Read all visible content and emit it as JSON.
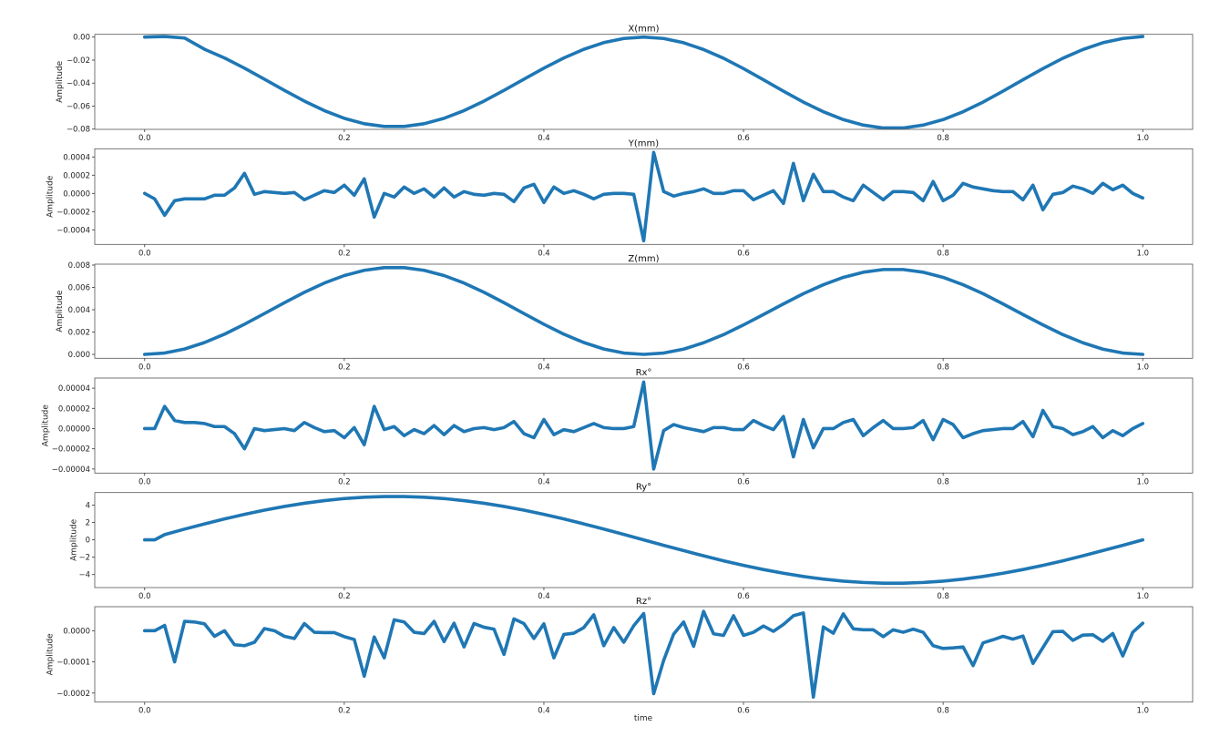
{
  "line_color": "#1f77b4",
  "xlabel": "time",
  "chart_data": [
    {
      "type": "line",
      "title": "X(mm)",
      "ylabel": "Amplitude",
      "xlim": [
        -0.05,
        1.05
      ],
      "ylim": [
        -0.0802,
        0.0024
      ],
      "xticks": [
        0,
        0.2,
        0.4,
        0.6,
        0.8,
        1.0
      ],
      "xtick_labels": [
        "0.0",
        "0.2",
        "0.4",
        "0.6",
        "0.8",
        "1.0"
      ],
      "yticks": [
        0,
        -0.02,
        -0.04,
        -0.06,
        -0.08
      ],
      "ytick_labels": [
        "0.00",
        "−0.02",
        "−0.04",
        "−0.06",
        "−0.08"
      ],
      "x": [
        0,
        0.02,
        0.04,
        0.06,
        0.08,
        0.1,
        0.12,
        0.14,
        0.16,
        0.18,
        0.2,
        0.22,
        0.24,
        0.26,
        0.28,
        0.3,
        0.32,
        0.34,
        0.36,
        0.38,
        0.4,
        0.42,
        0.44,
        0.46,
        0.48,
        0.5,
        0.52,
        0.54,
        0.56,
        0.58,
        0.6,
        0.62,
        0.64,
        0.66,
        0.68,
        0.7,
        0.72,
        0.74,
        0.76,
        0.78,
        0.8,
        0.82,
        0.84,
        0.86,
        0.88,
        0.9,
        0.92,
        0.94,
        0.96,
        0.98,
        1.0
      ],
      "y": [
        0.0,
        0.0005,
        -0.0008,
        -0.0106,
        -0.0181,
        -0.027,
        -0.0366,
        -0.0463,
        -0.0556,
        -0.0639,
        -0.0706,
        -0.0753,
        -0.0777,
        -0.0777,
        -0.0753,
        -0.0706,
        -0.0639,
        -0.0556,
        -0.0463,
        -0.0366,
        -0.027,
        -0.0181,
        -0.0106,
        -0.0048,
        -0.0012,
        0.0,
        -0.0012,
        -0.0049,
        -0.0108,
        -0.0184,
        -0.0274,
        -0.0371,
        -0.047,
        -0.0565,
        -0.0649,
        -0.0717,
        -0.0765,
        -0.079,
        -0.079,
        -0.0765,
        -0.0717,
        -0.0649,
        -0.0565,
        -0.047,
        -0.0371,
        -0.0274,
        -0.0184,
        -0.0108,
        -0.0049,
        -0.0012,
        0.0005
      ]
    },
    {
      "type": "line",
      "title": "Y(mm)",
      "ylabel": "Amplitude",
      "xlim": [
        -0.05,
        1.05
      ],
      "ylim": [
        -0.00056,
        0.00049
      ],
      "xticks": [
        0,
        0.2,
        0.4,
        0.6,
        0.8,
        1.0
      ],
      "xtick_labels": [
        "0.0",
        "0.2",
        "0.4",
        "0.6",
        "0.8",
        "1.0"
      ],
      "yticks": [
        0.0004,
        0.0002,
        0,
        -0.0002,
        -0.0004
      ],
      "ytick_labels": [
        "0.0004",
        "0.0002",
        "0.0000",
        "−0.0002",
        "−0.0004"
      ],
      "x": [
        0,
        0.01,
        0.02,
        0.03,
        0.04,
        0.05,
        0.06,
        0.07,
        0.08,
        0.09,
        0.1,
        0.11,
        0.12,
        0.13,
        0.14,
        0.15,
        0.16,
        0.17,
        0.18,
        0.19,
        0.2,
        0.21,
        0.22,
        0.23,
        0.24,
        0.25,
        0.26,
        0.27,
        0.28,
        0.29,
        0.3,
        0.31,
        0.32,
        0.33,
        0.34,
        0.35,
        0.36,
        0.37,
        0.38,
        0.39,
        0.4,
        0.41,
        0.42,
        0.43,
        0.44,
        0.45,
        0.46,
        0.47,
        0.48,
        0.49,
        0.5,
        0.51,
        0.52,
        0.53,
        0.54,
        0.55,
        0.56,
        0.57,
        0.58,
        0.59,
        0.6,
        0.61,
        0.62,
        0.63,
        0.64,
        0.65,
        0.66,
        0.67,
        0.68,
        0.69,
        0.7,
        0.71,
        0.72,
        0.73,
        0.74,
        0.75,
        0.76,
        0.77,
        0.78,
        0.79,
        0.8,
        0.81,
        0.82,
        0.83,
        0.84,
        0.85,
        0.86,
        0.87,
        0.88,
        0.89,
        0.9,
        0.91,
        0.92,
        0.93,
        0.94,
        0.95,
        0.96,
        0.97,
        0.98,
        0.99,
        1.0
      ],
      "y": [
        0,
        -6e-05,
        -0.00024,
        -8e-05,
        -6e-05,
        -6e-05,
        -6e-05,
        -2e-05,
        -2e-05,
        6e-05,
        0.00022,
        -1e-05,
        2e-05,
        1e-05,
        0,
        1e-05,
        -7e-05,
        -2e-05,
        3e-05,
        1e-05,
        9e-05,
        -2e-05,
        0.00016,
        -0.00026,
        0,
        -4e-05,
        7e-05,
        0,
        5e-05,
        -4e-05,
        6e-05,
        -4e-05,
        2e-05,
        -1e-05,
        -2e-05,
        0,
        -1e-05,
        -9e-05,
        6e-05,
        0.0001,
        -0.0001,
        7e-05,
        0,
        3e-05,
        -1e-05,
        -6e-05,
        -1e-05,
        0,
        0,
        -1e-05,
        -0.00052,
        0.00045,
        2e-05,
        -3e-05,
        0,
        2e-05,
        5e-05,
        0,
        0,
        3e-05,
        3e-05,
        -7e-05,
        -2e-05,
        3e-05,
        -0.00011,
        0.00033,
        -8e-05,
        0.00021,
        2e-05,
        2e-05,
        -4e-05,
        -8e-05,
        9e-05,
        1e-05,
        -7e-05,
        2e-05,
        2e-05,
        1e-05,
        -8e-05,
        0.00013,
        -8e-05,
        -2e-05,
        0.00011,
        7e-05,
        5e-05,
        3e-05,
        2e-05,
        2e-05,
        -7e-05,
        9e-05,
        -0.00018,
        -1e-05,
        1e-05,
        8e-05,
        5e-05,
        0,
        0.00011,
        4e-05,
        9e-05,
        0,
        -5e-05
      ]
    },
    {
      "type": "line",
      "title": "Z(mm)",
      "ylabel": "Amplitude",
      "xlim": [
        -0.05,
        1.05
      ],
      "ylim": [
        -0.00035,
        0.00808
      ],
      "xticks": [
        0,
        0.2,
        0.4,
        0.6,
        0.8,
        1.0
      ],
      "xtick_labels": [
        "0.0",
        "0.2",
        "0.4",
        "0.6",
        "0.8",
        "1.0"
      ],
      "yticks": [
        0.008,
        0.006,
        0.004,
        0.002,
        0
      ],
      "ytick_labels": [
        "0.008",
        "0.006",
        "0.004",
        "0.002",
        "0.000"
      ],
      "x": [
        0,
        0.02,
        0.04,
        0.06,
        0.08,
        0.1,
        0.12,
        0.14,
        0.16,
        0.18,
        0.2,
        0.22,
        0.24,
        0.26,
        0.28,
        0.3,
        0.32,
        0.34,
        0.36,
        0.38,
        0.4,
        0.42,
        0.44,
        0.46,
        0.48,
        0.5,
        0.52,
        0.54,
        0.56,
        0.58,
        0.6,
        0.62,
        0.64,
        0.66,
        0.68,
        0.7,
        0.72,
        0.74,
        0.76,
        0.78,
        0.8,
        0.82,
        0.84,
        0.86,
        0.88,
        0.9,
        0.92,
        0.94,
        0.96,
        0.98,
        1.0
      ],
      "y": [
        0,
        0.00012,
        0.00048,
        0.00106,
        0.00181,
        0.0027,
        0.00366,
        0.00463,
        0.00556,
        0.00639,
        0.00706,
        0.00753,
        0.00777,
        0.00777,
        0.00753,
        0.00706,
        0.00639,
        0.00556,
        0.00463,
        0.00366,
        0.0027,
        0.00181,
        0.00106,
        0.00048,
        0.00012,
        0,
        0.00012,
        0.00047,
        0.00104,
        0.00177,
        0.00264,
        0.00357,
        0.00452,
        0.00544,
        0.00624,
        0.0069,
        0.00736,
        0.0076,
        0.0076,
        0.00736,
        0.0069,
        0.00624,
        0.00544,
        0.00452,
        0.00357,
        0.00264,
        0.00177,
        0.00104,
        0.00047,
        0.00012,
        0
      ]
    },
    {
      "type": "line",
      "title": "Rx°",
      "ylabel": "Amplitude",
      "xlim": [
        -0.05,
        1.05
      ],
      "ylim": [
        -4.4e-05,
        5e-05
      ],
      "xticks": [
        0,
        0.2,
        0.4,
        0.6,
        0.8,
        1.0
      ],
      "xtick_labels": [
        "0.0",
        "0.2",
        "0.4",
        "0.6",
        "0.8",
        "1.0"
      ],
      "yticks": [
        4e-05,
        2e-05,
        0,
        -2e-05,
        -4e-05
      ],
      "ytick_labels": [
        "0.00004",
        "0.00002",
        "0.00000",
        "−0.00002",
        "−0.00004"
      ],
      "x": [
        0,
        0.01,
        0.02,
        0.03,
        0.04,
        0.05,
        0.06,
        0.07,
        0.08,
        0.09,
        0.1,
        0.11,
        0.12,
        0.13,
        0.14,
        0.15,
        0.16,
        0.17,
        0.18,
        0.19,
        0.2,
        0.21,
        0.22,
        0.23,
        0.24,
        0.25,
        0.26,
        0.27,
        0.28,
        0.29,
        0.3,
        0.31,
        0.32,
        0.33,
        0.34,
        0.35,
        0.36,
        0.37,
        0.38,
        0.39,
        0.4,
        0.41,
        0.42,
        0.43,
        0.44,
        0.45,
        0.46,
        0.47,
        0.48,
        0.49,
        0.5,
        0.51,
        0.52,
        0.53,
        0.54,
        0.55,
        0.56,
        0.57,
        0.58,
        0.59,
        0.6,
        0.61,
        0.62,
        0.63,
        0.64,
        0.65,
        0.66,
        0.67,
        0.68,
        0.69,
        0.7,
        0.71,
        0.72,
        0.73,
        0.74,
        0.75,
        0.76,
        0.77,
        0.78,
        0.79,
        0.8,
        0.81,
        0.82,
        0.83,
        0.84,
        0.85,
        0.86,
        0.87,
        0.88,
        0.89,
        0.9,
        0.91,
        0.92,
        0.93,
        0.94,
        0.95,
        0.96,
        0.97,
        0.98,
        0.99,
        1.0
      ],
      "y": [
        0,
        0,
        2.2e-05,
        8e-06,
        6e-06,
        6e-06,
        5e-06,
        2e-06,
        2e-06,
        -5e-06,
        -2e-05,
        0,
        -2e-06,
        -1e-06,
        0,
        -2e-06,
        6e-06,
        1e-06,
        -3e-06,
        -2e-06,
        -9e-06,
        1e-06,
        -1.6e-05,
        2.2e-05,
        -1e-06,
        2e-06,
        -7e-06,
        -1e-06,
        -5e-06,
        3e-06,
        -6e-06,
        3e-06,
        -3e-06,
        0,
        1e-06,
        -1e-06,
        1e-06,
        7e-06,
        -5e-06,
        -9e-06,
        9e-06,
        -6e-06,
        -1e-06,
        -3e-06,
        1e-06,
        5e-06,
        1e-06,
        0,
        0,
        2e-06,
        4.6e-05,
        -4e-05,
        -2e-06,
        4e-06,
        1e-06,
        -1e-06,
        -3e-06,
        1e-06,
        1e-06,
        -1e-06,
        -1e-06,
        8e-06,
        3e-06,
        -1e-06,
        1.2e-05,
        -2.8e-05,
        9e-06,
        -1.9e-05,
        0,
        0,
        6e-06,
        9e-06,
        -7e-06,
        1e-06,
        8e-06,
        0,
        0,
        1e-06,
        8e-06,
        -1.1e-05,
        9e-06,
        4e-06,
        -9e-06,
        -5e-06,
        -2e-06,
        -1e-06,
        0,
        0,
        7e-06,
        -8e-06,
        1.8e-05,
        2e-06,
        0,
        -6e-06,
        -3e-06,
        2e-06,
        -9e-06,
        -2e-06,
        -7e-06,
        0,
        5e-06
      ]
    },
    {
      "type": "line",
      "title": "Ry°",
      "ylabel": "Amplitude",
      "xlim": [
        -0.05,
        1.05
      ],
      "ylim": [
        -5.5,
        5.45
      ],
      "xticks": [
        0,
        0.2,
        0.4,
        0.6,
        0.8,
        1.0
      ],
      "xtick_labels": [
        "0.0",
        "0.2",
        "0.4",
        "0.6",
        "0.8",
        "1.0"
      ],
      "yticks": [
        4,
        2,
        0,
        -2,
        -4
      ],
      "ytick_labels": [
        "4",
        "2",
        "0",
        "−2",
        "−4"
      ],
      "x": [
        0,
        0.01,
        0.02,
        0.04,
        0.06,
        0.08,
        0.1,
        0.12,
        0.14,
        0.16,
        0.18,
        0.2,
        0.22,
        0.24,
        0.26,
        0.28,
        0.3,
        0.32,
        0.34,
        0.36,
        0.38,
        0.4,
        0.42,
        0.44,
        0.46,
        0.48,
        0.5,
        0.52,
        0.54,
        0.56,
        0.58,
        0.6,
        0.62,
        0.64,
        0.66,
        0.68,
        0.7,
        0.72,
        0.74,
        0.76,
        0.78,
        0.8,
        0.82,
        0.84,
        0.86,
        0.88,
        0.9,
        0.92,
        0.94,
        0.96,
        0.98,
        1.0
      ],
      "y": [
        0,
        0,
        0.6,
        1.24,
        1.84,
        2.41,
        2.94,
        3.42,
        3.85,
        4.22,
        4.52,
        4.76,
        4.91,
        4.99,
        4.99,
        4.91,
        4.76,
        4.52,
        4.22,
        3.85,
        3.42,
        2.94,
        2.41,
        1.84,
        1.24,
        0.63,
        0,
        -0.63,
        -1.24,
        -1.84,
        -2.41,
        -2.94,
        -3.42,
        -3.85,
        -4.22,
        -4.52,
        -4.76,
        -4.91,
        -4.99,
        -4.99,
        -4.91,
        -4.76,
        -4.52,
        -4.22,
        -3.85,
        -3.42,
        -2.94,
        -2.41,
        -1.84,
        -1.24,
        -0.63,
        0
      ]
    },
    {
      "type": "line",
      "title": "Rz°",
      "ylabel": "Amplitude",
      "xlabel": "time",
      "xlim": [
        -0.05,
        1.05
      ],
      "ylim": [
        -0.000229,
        7.7e-05
      ],
      "xticks": [
        0,
        0.2,
        0.4,
        0.6,
        0.8,
        1.0
      ],
      "xtick_labels": [
        "0.0",
        "0.2",
        "0.4",
        "0.6",
        "0.8",
        "1.0"
      ],
      "yticks": [
        0,
        -0.0001,
        -0.0002
      ],
      "ytick_labels": [
        "0.0000",
        "−0.0001",
        "−0.0002"
      ],
      "x": [
        0,
        0.01,
        0.02,
        0.03,
        0.04,
        0.05,
        0.06,
        0.07,
        0.08,
        0.09,
        0.1,
        0.11,
        0.12,
        0.13,
        0.14,
        0.15,
        0.16,
        0.17,
        0.18,
        0.19,
        0.2,
        0.21,
        0.22,
        0.23,
        0.24,
        0.25,
        0.26,
        0.27,
        0.28,
        0.29,
        0.3,
        0.31,
        0.32,
        0.33,
        0.34,
        0.35,
        0.36,
        0.37,
        0.38,
        0.39,
        0.4,
        0.41,
        0.42,
        0.43,
        0.44,
        0.45,
        0.46,
        0.47,
        0.48,
        0.49,
        0.5,
        0.51,
        0.52,
        0.53,
        0.54,
        0.55,
        0.56,
        0.57,
        0.58,
        0.59,
        0.6,
        0.61,
        0.62,
        0.63,
        0.64,
        0.65,
        0.66,
        0.67,
        0.68,
        0.69,
        0.7,
        0.71,
        0.72,
        0.73,
        0.74,
        0.75,
        0.76,
        0.77,
        0.78,
        0.79,
        0.8,
        0.81,
        0.82,
        0.83,
        0.84,
        0.85,
        0.86,
        0.87,
        0.88,
        0.89,
        0.9,
        0.91,
        0.92,
        0.93,
        0.94,
        0.95,
        0.96,
        0.97,
        0.98,
        0.99,
        1.0
      ],
      "y": [
        0,
        0,
        1.7e-05,
        -0.0001,
        3e-05,
        2.8e-05,
        2.2e-05,
        -1.8e-05,
        0,
        -4.5e-05,
        -4.8e-05,
        -3.7e-05,
        7e-06,
        0,
        -1.8e-05,
        -2.5e-05,
        2.3e-05,
        -5e-06,
        -6e-06,
        -6e-06,
        -1.9e-05,
        -2.8e-05,
        -0.000146,
        -2e-05,
        -8.7e-05,
        3.5e-05,
        2.8e-05,
        -5e-06,
        -9e-06,
        3e-05,
        -3.5e-05,
        2.4e-05,
        -5.2e-05,
        2.3e-05,
        1.1e-05,
        5e-06,
        -7.6e-05,
        3.8e-05,
        2.3e-05,
        -2.5e-05,
        2.2e-05,
        -8.7e-05,
        -1.2e-05,
        -8e-06,
        1e-05,
        5.1e-05,
        -4.8e-05,
        1e-05,
        -3.7e-05,
        1.6e-05,
        5.5e-05,
        -0.000202,
        -9.5e-05,
        -1.1e-05,
        2.8e-05,
        -5e-05,
        6.2e-05,
        -1e-05,
        -1.5e-05,
        4.8e-05,
        -1.5e-05,
        -5e-06,
        1.5e-05,
        -2e-06,
        2e-05,
        4.8e-05,
        5.7e-05,
        -0.000213,
        1.2e-05,
        -8e-06,
        5.4e-05,
        6e-06,
        3e-06,
        3e-06,
        -1.9e-05,
        3e-06,
        -5e-06,
        5e-06,
        -5e-06,
        -4.8e-05,
        -5.7e-05,
        -5.5e-05,
        -5.2e-05,
        -0.000112,
        -3.9e-05,
        -2.9e-05,
        -1.8e-05,
        -2.7e-05,
        -1.7e-05,
        -0.000105,
        -5.4e-05,
        -3e-06,
        -2e-06,
        -3.1e-05,
        -1.4e-05,
        -1.3e-05,
        -3.4e-05,
        -9e-06,
        -8.1e-05,
        -5e-06,
        2.4e-05
      ]
    }
  ]
}
